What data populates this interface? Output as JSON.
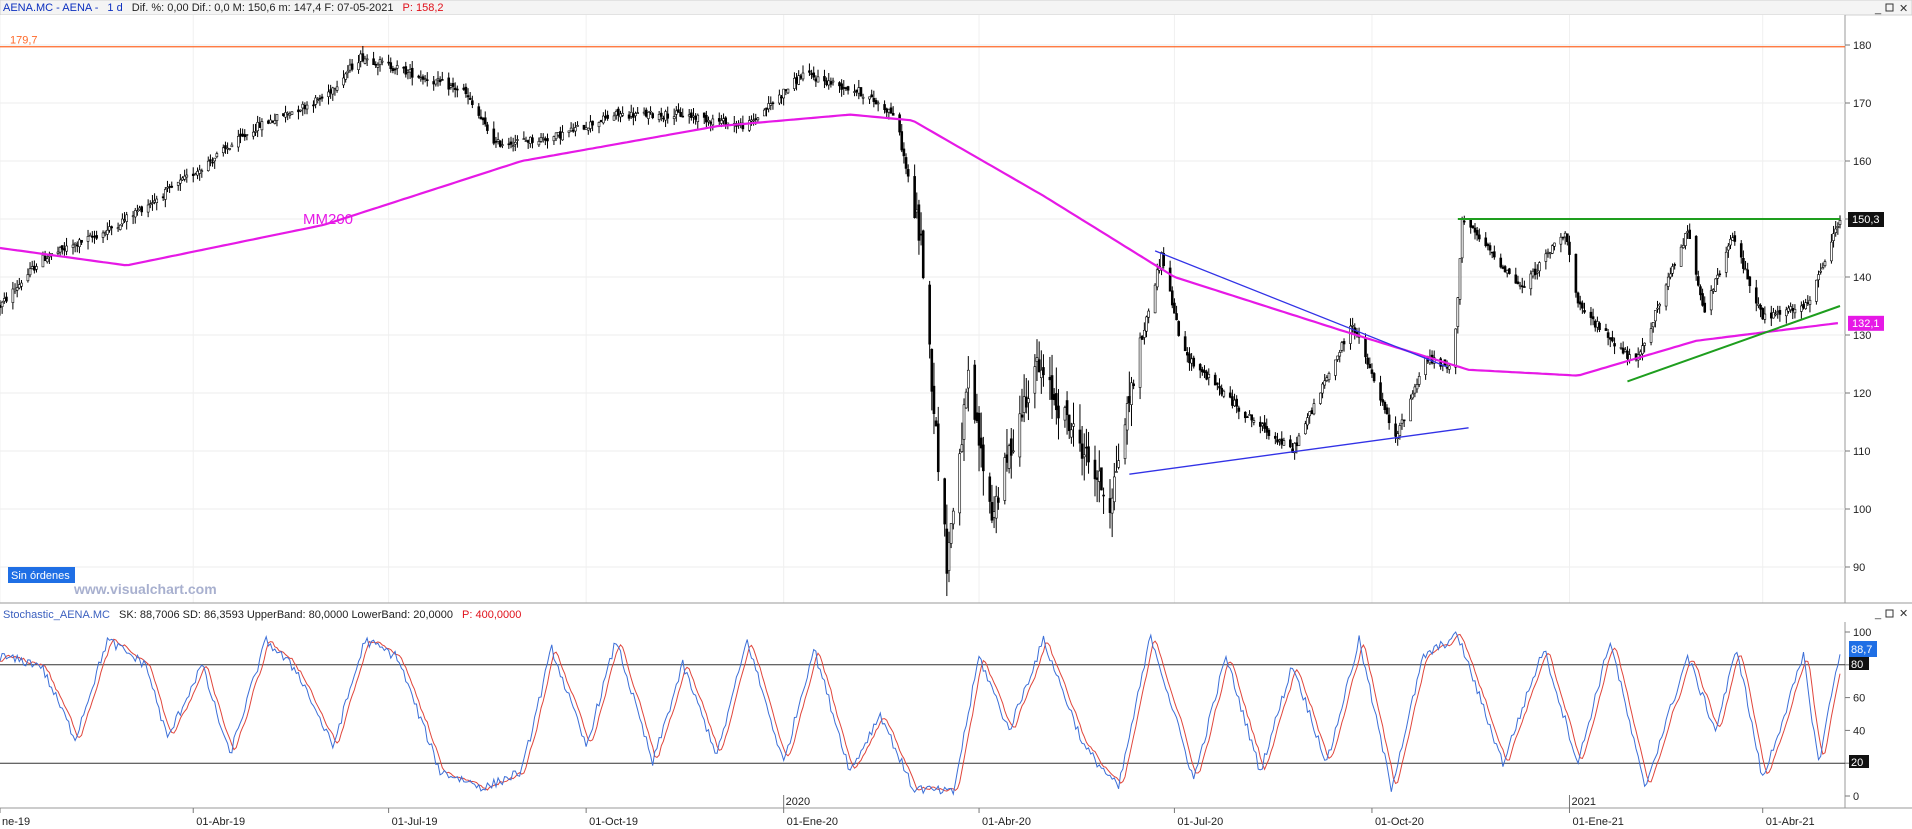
{
  "header": {
    "symbol": "AENA.MC - AENA - ",
    "timeframe": "1 d",
    "fields": "Dif. %: 0,00  Dif.: 0,0  M: 150,6  m: 147,4  F: 07-05-2021",
    "p_label": "P: 158,2"
  },
  "price_panel": {
    "resistance_label": "179,7",
    "mm200_label": "MM200",
    "orders_badge": "Sin órdenes",
    "watermark": "www.visualchart.com",
    "last_price_badge": "150,3",
    "mm200_badge": "132,1",
    "y_ticks": [
      "180",
      "170",
      "160",
      "150",
      "140",
      "130",
      "120",
      "110",
      "100",
      "90"
    ]
  },
  "indicator_panel": {
    "name": "Stochastic_AENA.MC",
    "fields": "SK: 88,7006  SD: 86,3593  UpperBand: 80,0000  LowerBand: 20,0000",
    "p_label": "P: 400,0000",
    "badge_sk": "88,7",
    "badge_band": "80",
    "badge_low": "20",
    "y_ticks": [
      "100",
      "80",
      "60",
      "40",
      "20",
      "0"
    ]
  },
  "x_axis": {
    "labels": [
      "ne-19",
      "01-Abr-19",
      "01-Jul-19",
      "01-Oct-19",
      "01-Ene-20",
      "01-Abr-20",
      "01-Jul-20",
      "01-Oct-20",
      "01-Ene-21",
      "01-Abr-21"
    ],
    "year_markers": [
      "2020",
      "2021"
    ]
  },
  "colors": {
    "price_bars": "#000000",
    "mm200": "#e619e6",
    "resistance": "#ff6a2a",
    "triangle_lines": "#3232e6",
    "channel_lines": "#1e9e1e",
    "stoch_sk": "#3c6fd8",
    "stoch_sd": "#e0463c",
    "badge": "#1f6fe5"
  },
  "chart_data": [
    {
      "type": "candlestick",
      "title": "AENA.MC",
      "x_range": [
        "2019-01-01",
        "2021-05-07"
      ],
      "ylim": [
        85,
        185
      ],
      "grid": true,
      "anchors": [
        {
          "date": "2019-01-01",
          "value": 135
        },
        {
          "date": "2019-01-20",
          "value": 143
        },
        {
          "date": "2019-02-20",
          "value": 148
        },
        {
          "date": "2019-03-25",
          "value": 156
        },
        {
          "date": "2019-05-01",
          "value": 166
        },
        {
          "date": "2019-06-01",
          "value": 171
        },
        {
          "date": "2019-06-18",
          "value": 178
        },
        {
          "date": "2019-07-05",
          "value": 176
        },
        {
          "date": "2019-08-05",
          "value": 172
        },
        {
          "date": "2019-08-20",
          "value": 163
        },
        {
          "date": "2019-09-15",
          "value": 164
        },
        {
          "date": "2019-10-15",
          "value": 168
        },
        {
          "date": "2019-11-15",
          "value": 168
        },
        {
          "date": "2019-12-15",
          "value": 166
        },
        {
          "date": "2020-01-10",
          "value": 175
        },
        {
          "date": "2020-02-05",
          "value": 172
        },
        {
          "date": "2020-02-22",
          "value": 168
        },
        {
          "date": "2020-03-05",
          "value": 146
        },
        {
          "date": "2020-03-12",
          "value": 113
        },
        {
          "date": "2020-03-17",
          "value": 91
        },
        {
          "date": "2020-03-27",
          "value": 122
        },
        {
          "date": "2020-04-07",
          "value": 99
        },
        {
          "date": "2020-04-27",
          "value": 125
        },
        {
          "date": "2020-05-20",
          "value": 110
        },
        {
          "date": "2020-06-01",
          "value": 101
        },
        {
          "date": "2020-06-12",
          "value": 123
        },
        {
          "date": "2020-06-25",
          "value": 144
        },
        {
          "date": "2020-07-05",
          "value": 127
        },
        {
          "date": "2020-08-01",
          "value": 117
        },
        {
          "date": "2020-08-25",
          "value": 110
        },
        {
          "date": "2020-09-22",
          "value": 132
        },
        {
          "date": "2020-10-12",
          "value": 112
        },
        {
          "date": "2020-10-26",
          "value": 126
        },
        {
          "date": "2020-11-08",
          "value": 124
        },
        {
          "date": "2020-11-12",
          "value": 150
        },
        {
          "date": "2020-12-10",
          "value": 138
        },
        {
          "date": "2020-12-30",
          "value": 148
        },
        {
          "date": "2021-01-05",
          "value": 135
        },
        {
          "date": "2021-02-01",
          "value": 125
        },
        {
          "date": "2021-02-25",
          "value": 148
        },
        {
          "date": "2021-03-05",
          "value": 134
        },
        {
          "date": "2021-03-18",
          "value": 147
        },
        {
          "date": "2021-04-01",
          "value": 133
        },
        {
          "date": "2021-04-22",
          "value": 135
        },
        {
          "date": "2021-05-07",
          "value": 150
        }
      ],
      "moving_average": {
        "name": "MM200",
        "anchors": [
          {
            "date": "2019-01-01",
            "value": 145
          },
          {
            "date": "2019-03-01",
            "value": 142
          },
          {
            "date": "2019-06-01",
            "value": 149
          },
          {
            "date": "2019-09-01",
            "value": 160
          },
          {
            "date": "2019-12-01",
            "value": 166
          },
          {
            "date": "2020-02-01",
            "value": 168
          },
          {
            "date": "2020-03-01",
            "value": 167
          },
          {
            "date": "2020-05-01",
            "value": 154
          },
          {
            "date": "2020-07-01",
            "value": 140
          },
          {
            "date": "2020-09-15",
            "value": 131
          },
          {
            "date": "2020-11-15",
            "value": 124
          },
          {
            "date": "2021-01-05",
            "value": 123
          },
          {
            "date": "2021-03-01",
            "value": 129
          },
          {
            "date": "2021-05-07",
            "value": 132.1
          }
        ]
      },
      "lines": [
        {
          "name": "resistance",
          "value": 179.7
        },
        {
          "name": "triangle_upper",
          "from": {
            "date": "2020-06-22",
            "value": 144.5
          },
          "to": {
            "date": "2020-11-05",
            "value": 124.5
          }
        },
        {
          "name": "triangle_lower",
          "from": {
            "date": "2020-06-10",
            "value": 106
          },
          "to": {
            "date": "2020-11-15",
            "value": 114
          }
        },
        {
          "name": "channel_top",
          "from": {
            "date": "2020-11-10",
            "value": 150
          },
          "to": {
            "date": "2021-05-07",
            "value": 150
          }
        },
        {
          "name": "channel_bottom",
          "from": {
            "date": "2021-01-28",
            "value": 122
          },
          "to": {
            "date": "2021-05-07",
            "value": 135
          }
        }
      ]
    },
    {
      "type": "line",
      "title": "Stochastic_AENA.MC",
      "ylim": [
        0,
        100
      ],
      "bands": [
        80,
        20
      ],
      "series": [
        {
          "name": "SK",
          "last": 88.7006
        },
        {
          "name": "SD",
          "last": 86.3593
        }
      ],
      "turning_points": [
        {
          "date": "2019-01-01",
          "value": 85
        },
        {
          "date": "2019-01-20",
          "value": 80
        },
        {
          "date": "2019-02-05",
          "value": 35
        },
        {
          "date": "2019-02-20",
          "value": 95
        },
        {
          "date": "2019-03-10",
          "value": 80
        },
        {
          "date": "2019-03-20",
          "value": 35
        },
        {
          "date": "2019-04-05",
          "value": 80
        },
        {
          "date": "2019-04-18",
          "value": 25
        },
        {
          "date": "2019-05-05",
          "value": 95
        },
        {
          "date": "2019-05-20",
          "value": 75
        },
        {
          "date": "2019-06-05",
          "value": 30
        },
        {
          "date": "2019-06-20",
          "value": 95
        },
        {
          "date": "2019-07-05",
          "value": 85
        },
        {
          "date": "2019-07-25",
          "value": 15
        },
        {
          "date": "2019-08-15",
          "value": 5
        },
        {
          "date": "2019-09-01",
          "value": 15
        },
        {
          "date": "2019-09-15",
          "value": 90
        },
        {
          "date": "2019-10-01",
          "value": 30
        },
        {
          "date": "2019-10-15",
          "value": 95
        },
        {
          "date": "2019-11-01",
          "value": 20
        },
        {
          "date": "2019-11-15",
          "value": 80
        },
        {
          "date": "2019-12-01",
          "value": 25
        },
        {
          "date": "2019-12-15",
          "value": 95
        },
        {
          "date": "2020-01-01",
          "value": 20
        },
        {
          "date": "2020-01-15",
          "value": 90
        },
        {
          "date": "2020-02-01",
          "value": 15
        },
        {
          "date": "2020-02-15",
          "value": 50
        },
        {
          "date": "2020-03-01",
          "value": 5
        },
        {
          "date": "2020-03-20",
          "value": 2
        },
        {
          "date": "2020-04-01",
          "value": 85
        },
        {
          "date": "2020-04-15",
          "value": 40
        },
        {
          "date": "2020-05-01",
          "value": 95
        },
        {
          "date": "2020-05-20",
          "value": 30
        },
        {
          "date": "2020-06-05",
          "value": 5
        },
        {
          "date": "2020-06-20",
          "value": 98
        },
        {
          "date": "2020-07-10",
          "value": 10
        },
        {
          "date": "2020-07-25",
          "value": 85
        },
        {
          "date": "2020-08-10",
          "value": 15
        },
        {
          "date": "2020-08-25",
          "value": 80
        },
        {
          "date": "2020-09-10",
          "value": 20
        },
        {
          "date": "2020-09-25",
          "value": 95
        },
        {
          "date": "2020-10-10",
          "value": 5
        },
        {
          "date": "2020-10-25",
          "value": 85
        },
        {
          "date": "2020-11-10",
          "value": 98
        },
        {
          "date": "2020-12-01",
          "value": 20
        },
        {
          "date": "2020-12-20",
          "value": 90
        },
        {
          "date": "2021-01-05",
          "value": 20
        },
        {
          "date": "2021-01-20",
          "value": 95
        },
        {
          "date": "2021-02-05",
          "value": 5
        },
        {
          "date": "2021-02-25",
          "value": 85
        },
        {
          "date": "2021-03-10",
          "value": 40
        },
        {
          "date": "2021-03-20",
          "value": 90
        },
        {
          "date": "2021-04-01",
          "value": 10
        },
        {
          "date": "2021-04-20",
          "value": 85
        },
        {
          "date": "2021-04-27",
          "value": 20
        },
        {
          "date": "2021-05-07",
          "value": 88.7
        }
      ]
    }
  ]
}
